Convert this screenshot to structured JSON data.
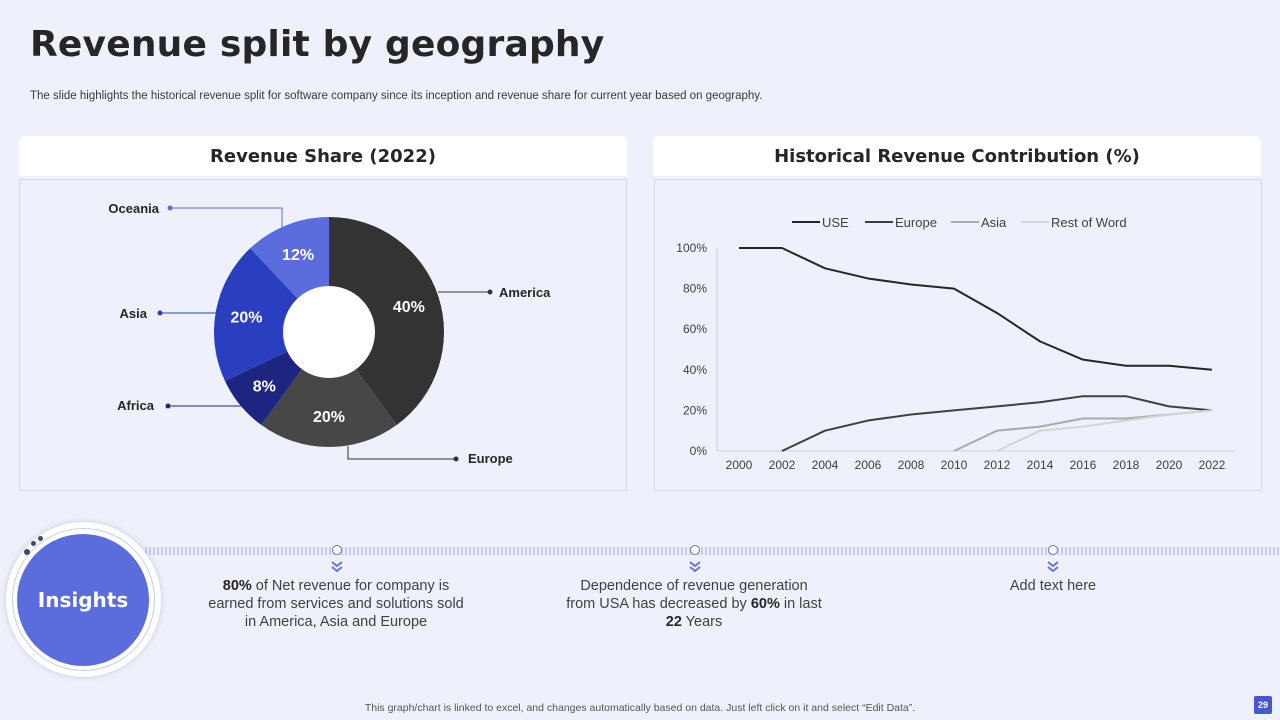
{
  "title": "Revenue split by geography",
  "subtitle": "The slide highlights the historical revenue split for software company since its inception and revenue share for current year  based on geography.",
  "left_panel": {
    "heading": "Revenue Share (2022)"
  },
  "right_panel": {
    "heading": "Historical Revenue Contribution (%)"
  },
  "insights": {
    "label": "Insights",
    "items": [
      {
        "strong": "80%",
        "text_after": " of Net revenue for company is earned from services and solutions sold in America, Asia and Europe"
      },
      {
        "text_before": "Dependence of revenue generation from USA has decreased by ",
        "strong1": "60%",
        "text_mid": " in last ",
        "strong2": "22",
        "text_after": " Years"
      },
      {
        "text": "Add text here"
      }
    ]
  },
  "footer": "This graph/chart is linked to excel, and changes automatically based on data. Just left click on it and select “Edit Data”.",
  "page_number": "29",
  "colors": {
    "accent": "#5b6cdc",
    "america": "#333333",
    "europe": "#474747",
    "africa": "#1e2580",
    "asia": "#2a3ec0",
    "oceania": "#5b6cdc",
    "use": "#262626",
    "europe_line": "#404040",
    "asia_line": "#aaaaaa",
    "rest_line": "#d4d4d4"
  },
  "chart_data": [
    {
      "type": "pie",
      "title": "Revenue Share (2022)",
      "labels": [
        "America",
        "Europe",
        "Africa",
        "Asia",
        "Oceania"
      ],
      "values": [
        40,
        20,
        8,
        20,
        12
      ],
      "value_labels": [
        "40%",
        "20%",
        "8%",
        "20%",
        "12%"
      ],
      "donut": true
    },
    {
      "type": "line",
      "title": "Historical Revenue Contribution (%)",
      "x": [
        2000,
        2002,
        2004,
        2006,
        2008,
        2010,
        2012,
        2014,
        2016,
        2018,
        2020,
        2022
      ],
      "x_ticks": [
        "2000",
        "2002",
        "2004",
        "2006",
        "2008",
        "2010",
        "2012",
        "2014",
        "2016",
        "2018",
        "2020",
        "2022"
      ],
      "y_ticks": [
        "0%",
        "20%",
        "40%",
        "60%",
        "80%",
        "100%"
      ],
      "ylim": [
        0,
        100
      ],
      "legend_position": "top",
      "series": [
        {
          "name": "USE",
          "values": [
            100,
            100,
            90,
            85,
            82,
            80,
            68,
            54,
            45,
            42,
            42,
            40
          ]
        },
        {
          "name": "Europe",
          "values": [
            null,
            0,
            10,
            15,
            18,
            20,
            22,
            24,
            27,
            27,
            22,
            20
          ]
        },
        {
          "name": "Asia",
          "values": [
            null,
            null,
            null,
            null,
            null,
            0,
            10,
            12,
            16,
            16,
            18,
            20
          ]
        },
        {
          "name": "Rest of Word",
          "values": [
            null,
            null,
            null,
            null,
            null,
            null,
            0,
            10,
            12,
            15,
            18,
            20
          ]
        }
      ]
    }
  ]
}
